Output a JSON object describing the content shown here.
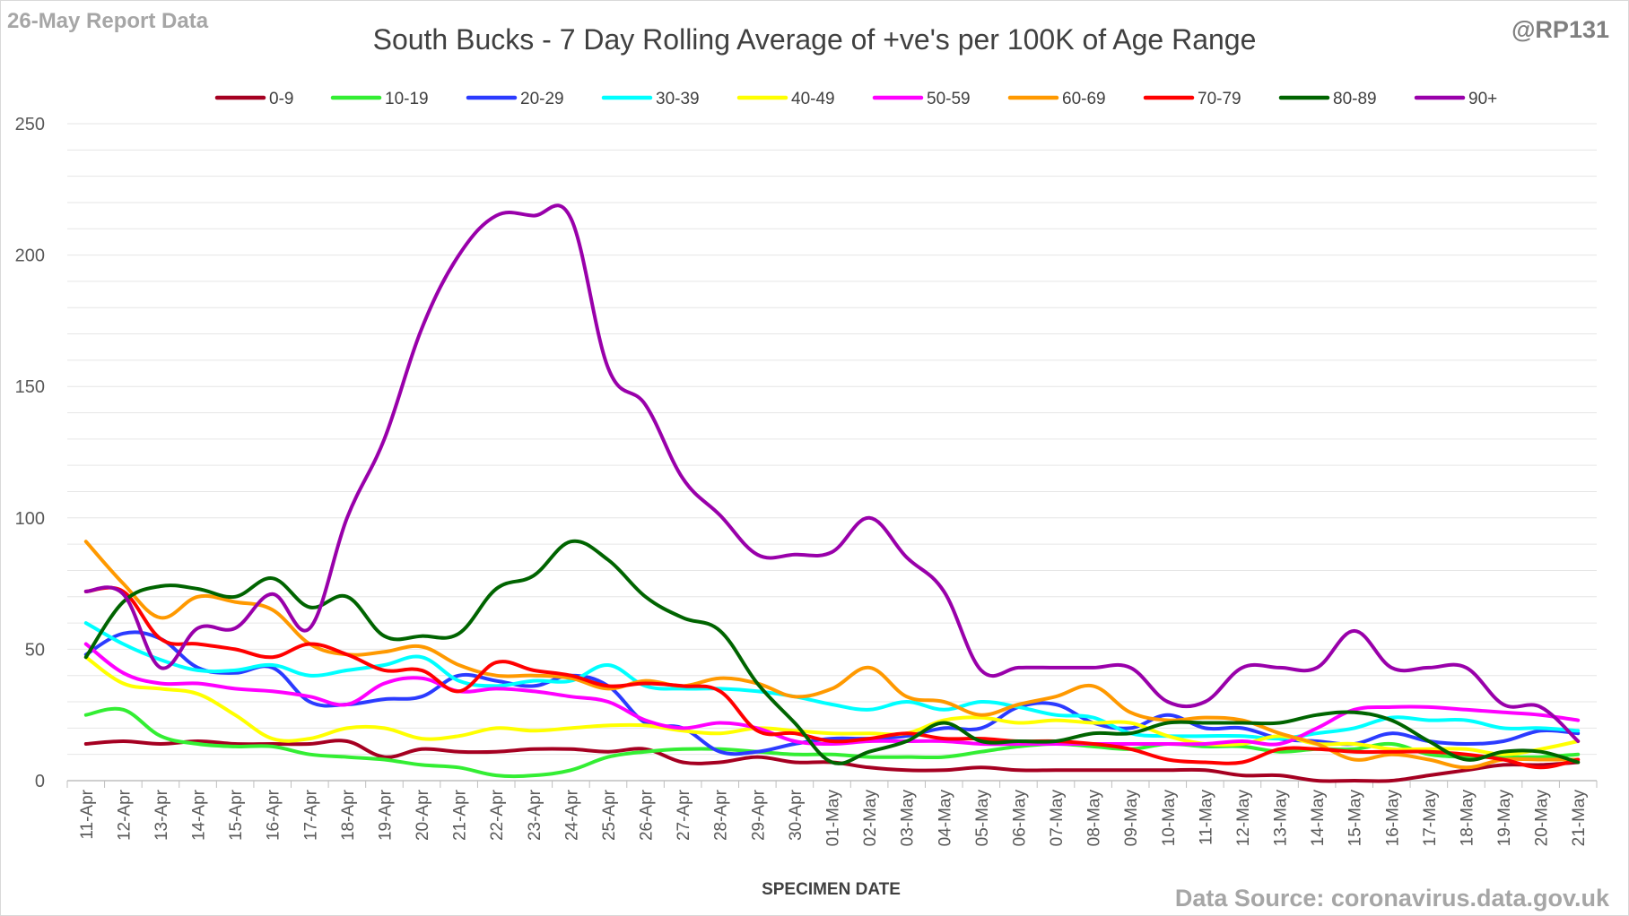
{
  "header": {
    "report_label": "26-May Report Data",
    "handle": "@RP131"
  },
  "footer": {
    "source": "Data Source: coronavirus.data.gov.uk"
  },
  "chart_data": {
    "type": "line",
    "title": "South Bucks - 7 Day Rolling Average of +ve's per 100K of Age Range",
    "xlabel": "SPECIMEN DATE",
    "ylabel": "",
    "ylim": [
      0,
      250
    ],
    "yticks": [
      0,
      50,
      100,
      150,
      200,
      250
    ],
    "grid": true,
    "legend_position": "top",
    "categories": [
      "11-Apr",
      "12-Apr",
      "13-Apr",
      "14-Apr",
      "15-Apr",
      "16-Apr",
      "17-Apr",
      "18-Apr",
      "19-Apr",
      "20-Apr",
      "21-Apr",
      "22-Apr",
      "23-Apr",
      "24-Apr",
      "25-Apr",
      "26-Apr",
      "27-Apr",
      "28-Apr",
      "29-Apr",
      "30-Apr",
      "01-May",
      "02-May",
      "03-May",
      "04-May",
      "05-May",
      "06-May",
      "07-May",
      "08-May",
      "09-May",
      "10-May",
      "11-May",
      "12-May",
      "13-May",
      "14-May",
      "15-May",
      "16-May",
      "17-May",
      "18-May",
      "19-May",
      "20-May",
      "21-May"
    ],
    "series": [
      {
        "name": "0-9",
        "color": "#a50021",
        "values": [
          14,
          15,
          14,
          15,
          14,
          14,
          14,
          15,
          9,
          12,
          11,
          11,
          12,
          12,
          11,
          12,
          7,
          7,
          9,
          7,
          7,
          5,
          4,
          4,
          5,
          4,
          4,
          4,
          4,
          4,
          4,
          2,
          2,
          0,
          0,
          0,
          2,
          4,
          6,
          6,
          7
        ]
      },
      {
        "name": "10-19",
        "color": "#33ee33",
        "values": [
          25,
          27,
          17,
          14,
          13,
          13,
          10,
          9,
          8,
          6,
          5,
          2,
          2,
          4,
          9,
          11,
          12,
          12,
          11,
          10,
          10,
          9,
          9,
          9,
          11,
          13,
          14,
          13,
          12,
          14,
          13,
          13,
          11,
          12,
          12,
          14,
          10,
          9,
          9,
          9,
          10
        ]
      },
      {
        "name": "20-29",
        "color": "#2b3bff",
        "values": [
          48,
          56,
          54,
          43,
          41,
          43,
          30,
          29,
          31,
          32,
          40,
          38,
          36,
          40,
          36,
          22,
          20,
          11,
          11,
          14,
          16,
          16,
          17,
          20,
          20,
          28,
          29,
          22,
          20,
          25,
          20,
          20,
          16,
          15,
          14,
          18,
          15,
          14,
          15,
          19,
          18
        ]
      },
      {
        "name": "30-39",
        "color": "#00ffff",
        "values": [
          60,
          52,
          46,
          42,
          42,
          44,
          40,
          42,
          44,
          47,
          38,
          36,
          38,
          38,
          44,
          36,
          35,
          35,
          34,
          32,
          29,
          27,
          30,
          27,
          30,
          28,
          25,
          24,
          18,
          17,
          17,
          17,
          16,
          18,
          20,
          24,
          23,
          23,
          20,
          20,
          19
        ]
      },
      {
        "name": "40-49",
        "color": "#ffff00",
        "values": [
          47,
          37,
          35,
          33,
          25,
          16,
          16,
          20,
          20,
          16,
          17,
          20,
          19,
          20,
          21,
          21,
          19,
          18,
          20,
          19,
          18,
          18,
          18,
          23,
          24,
          22,
          23,
          22,
          22,
          17,
          14,
          14,
          17,
          14,
          14,
          12,
          12,
          12,
          10,
          12,
          15
        ]
      },
      {
        "name": "50-59",
        "color": "#ff00ff",
        "values": [
          52,
          41,
          37,
          37,
          35,
          34,
          32,
          29,
          37,
          39,
          34,
          35,
          34,
          32,
          30,
          23,
          20,
          22,
          20,
          15,
          14,
          15,
          15,
          15,
          14,
          14,
          14,
          14,
          14,
          14,
          14,
          15,
          14,
          20,
          27,
          28,
          28,
          27,
          26,
          25,
          23
        ]
      },
      {
        "name": "60-69",
        "color": "#ff9900",
        "values": [
          91,
          75,
          62,
          70,
          68,
          65,
          52,
          48,
          49,
          51,
          44,
          40,
          40,
          39,
          35,
          38,
          36,
          39,
          37,
          32,
          35,
          43,
          32,
          30,
          25,
          29,
          32,
          36,
          26,
          23,
          24,
          23,
          18,
          14,
          8,
          10,
          8,
          5,
          8,
          8,
          8
        ]
      },
      {
        "name": "70-79",
        "color": "#ff0000",
        "values": [
          72,
          72,
          54,
          52,
          50,
          47,
          52,
          48,
          42,
          42,
          34,
          45,
          42,
          40,
          36,
          37,
          36,
          34,
          19,
          18,
          15,
          16,
          18,
          16,
          16,
          15,
          15,
          14,
          12,
          8,
          7,
          7,
          12,
          12,
          11,
          11,
          11,
          10,
          8,
          5,
          8
        ]
      },
      {
        "name": "80-89",
        "color": "#006400",
        "values": [
          47,
          68,
          74,
          73,
          70,
          77,
          66,
          70,
          55,
          55,
          56,
          73,
          78,
          91,
          84,
          70,
          62,
          57,
          37,
          22,
          7,
          11,
          15,
          22,
          15,
          15,
          15,
          18,
          18,
          22,
          22,
          22,
          22,
          25,
          26,
          23,
          15,
          8,
          11,
          11,
          7
        ]
      },
      {
        "name": "90+",
        "color": "#9900aa",
        "values": [
          72,
          71,
          43,
          58,
          58,
          71,
          58,
          100,
          130,
          172,
          200,
          215,
          215,
          214,
          157,
          143,
          115,
          101,
          86,
          86,
          87,
          100,
          85,
          72,
          42,
          43,
          43,
          43,
          43,
          30,
          30,
          43,
          43,
          43,
          57,
          43,
          43,
          43,
          29,
          28,
          15
        ]
      }
    ]
  }
}
